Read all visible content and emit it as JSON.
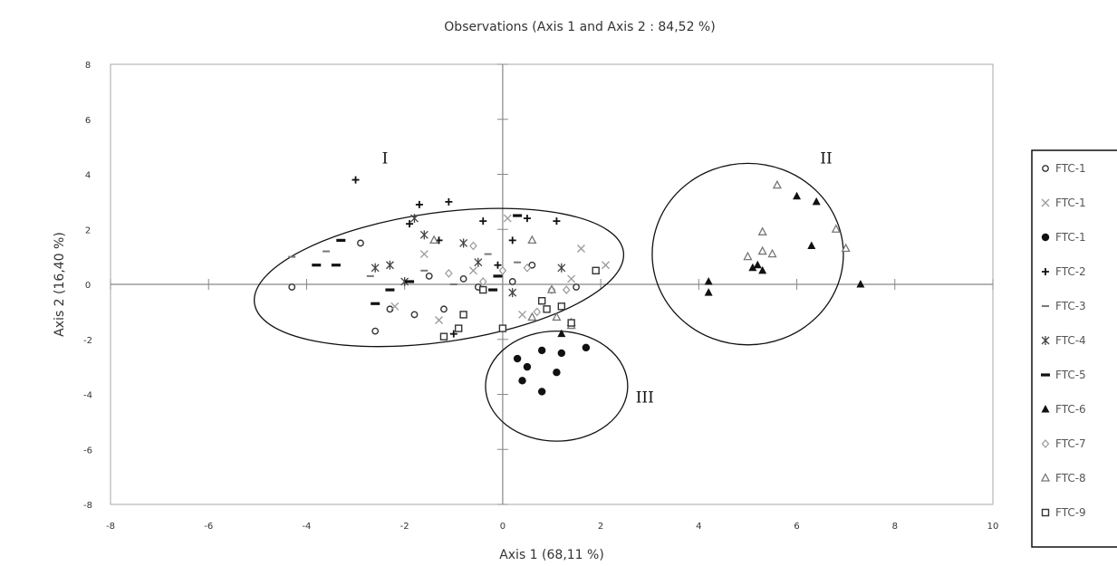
{
  "chart_data": {
    "type": "scatter",
    "title": "Observations (Axis 1 and Axis 2 : 84,52 %)",
    "xlabel": "Axis 1 (68,11 %)",
    "ylabel": "Axis 2 (16,40 %)",
    "xlim": [
      -8,
      10
    ],
    "ylim": [
      -8,
      8
    ],
    "x_ticks": [
      "-8",
      "-6",
      "-4",
      "-2",
      "0",
      "2",
      "4",
      "6",
      "8",
      "10"
    ],
    "y_ticks": [
      "8",
      "6",
      "4",
      "2",
      "0",
      "-2",
      "-4",
      "-6",
      "-8"
    ],
    "grid": false,
    "legend_position": "right",
    "cluster_labels": [
      {
        "label": "I",
        "x": -2.4,
        "y": 4.4
      },
      {
        "label": "II",
        "x": 6.6,
        "y": 4.4
      },
      {
        "label": "III",
        "x": 2.9,
        "y": -4.3
      }
    ],
    "ellipses": [
      {
        "cx": -1.3,
        "cy": 0.25,
        "rx": 3.8,
        "ry": 2.35,
        "rotate": -8
      },
      {
        "cx": 5.0,
        "cy": 1.1,
        "rx": 1.95,
        "ry": 3.3,
        "rotate": 0
      },
      {
        "cx": 1.1,
        "cy": -3.7,
        "rx": 1.45,
        "ry": 2.0,
        "rotate": 0
      }
    ],
    "series": [
      {
        "name": "FTC-1",
        "marker": "circle-open",
        "color": "#333333",
        "points": [
          [
            -4.3,
            -0.1
          ],
          [
            -2.9,
            1.5
          ],
          [
            -2.3,
            -0.9
          ],
          [
            -1.8,
            -1.1
          ],
          [
            -1.2,
            -0.9
          ],
          [
            -0.8,
            0.2
          ],
          [
            -0.5,
            -0.1
          ],
          [
            0.2,
            0.1
          ],
          [
            0.6,
            0.7
          ],
          [
            1.5,
            -0.1
          ],
          [
            -1.5,
            0.3
          ],
          [
            -2.6,
            -1.7
          ]
        ]
      },
      {
        "name": "FTC-1",
        "marker": "cross",
        "color": "#999999",
        "points": [
          [
            -2.2,
            -0.8
          ],
          [
            -1.6,
            1.1
          ],
          [
            -0.6,
            0.5
          ],
          [
            0.1,
            2.4
          ],
          [
            1.4,
            0.2
          ],
          [
            2.1,
            0.7
          ],
          [
            -1.3,
            -1.3
          ],
          [
            0.4,
            -1.1
          ],
          [
            1.6,
            1.3
          ]
        ]
      },
      {
        "name": "FTC-1",
        "marker": "dot",
        "color": "#111111",
        "points": [
          [
            0.3,
            -2.7
          ],
          [
            0.5,
            -3.0
          ],
          [
            0.8,
            -2.4
          ],
          [
            0.8,
            -3.9
          ],
          [
            1.1,
            -3.2
          ],
          [
            1.2,
            -2.5
          ],
          [
            1.7,
            -2.3
          ],
          [
            0.4,
            -3.5
          ]
        ]
      },
      {
        "name": "FTC-2",
        "marker": "plus",
        "color": "#111111",
        "points": [
          [
            -3.0,
            3.8
          ],
          [
            -1.9,
            2.2
          ],
          [
            -1.7,
            2.9
          ],
          [
            -1.1,
            3.0
          ],
          [
            -1.3,
            1.6
          ],
          [
            -0.4,
            2.3
          ],
          [
            0.2,
            1.6
          ],
          [
            -0.1,
            0.7
          ],
          [
            1.1,
            2.3
          ],
          [
            0.5,
            2.4
          ],
          [
            -1.0,
            -1.8
          ]
        ]
      },
      {
        "name": "FTC-3",
        "marker": "dash",
        "color": "#777777",
        "points": [
          [
            -4.3,
            1.0
          ],
          [
            -3.6,
            1.2
          ],
          [
            -2.7,
            0.3
          ],
          [
            -1.6,
            0.5
          ],
          [
            -1.0,
            0.0
          ],
          [
            0.3,
            0.8
          ],
          [
            -0.3,
            1.1
          ]
        ]
      },
      {
        "name": "FTC-4",
        "marker": "star",
        "color": "#444444",
        "points": [
          [
            -2.6,
            0.6
          ],
          [
            -2.3,
            0.7
          ],
          [
            -1.8,
            2.4
          ],
          [
            -1.6,
            1.8
          ],
          [
            -0.8,
            1.5
          ],
          [
            -0.5,
            0.8
          ],
          [
            1.2,
            0.6
          ],
          [
            -2.0,
            0.1
          ],
          [
            0.2,
            -0.3
          ]
        ]
      },
      {
        "name": "FTC-5",
        "marker": "bar",
        "color": "#111111",
        "points": [
          [
            -3.3,
            1.6
          ],
          [
            -3.8,
            0.7
          ],
          [
            -3.4,
            0.7
          ],
          [
            -2.6,
            -0.7
          ],
          [
            -2.3,
            -0.2
          ],
          [
            -1.9,
            0.1
          ],
          [
            -0.1,
            0.3
          ],
          [
            -0.2,
            -0.2
          ],
          [
            0.3,
            2.5
          ]
        ]
      },
      {
        "name": "FTC-6",
        "marker": "triangle-filled",
        "color": "#111111",
        "points": [
          [
            4.2,
            0.1
          ],
          [
            5.1,
            0.6
          ],
          [
            5.3,
            0.5
          ],
          [
            6.0,
            3.2
          ],
          [
            6.4,
            3.0
          ],
          [
            6.3,
            1.4
          ],
          [
            7.3,
            0.0
          ],
          [
            4.2,
            -0.3
          ],
          [
            5.2,
            0.7
          ],
          [
            1.2,
            -1.8
          ]
        ]
      },
      {
        "name": "FTC-7",
        "marker": "diamond-open",
        "color": "#999999",
        "points": [
          [
            -1.1,
            0.4
          ],
          [
            -0.6,
            1.4
          ],
          [
            0.0,
            0.5
          ],
          [
            0.5,
            0.6
          ],
          [
            1.0,
            -0.2
          ],
          [
            1.3,
            -0.2
          ],
          [
            -0.4,
            0.1
          ],
          [
            0.7,
            -1.0
          ]
        ]
      },
      {
        "name": "FTC-8",
        "marker": "triangle-open",
        "color": "#777777",
        "points": [
          [
            5.3,
            1.9
          ],
          [
            5.6,
            3.6
          ],
          [
            5.5,
            1.1
          ],
          [
            5.3,
            1.2
          ],
          [
            6.8,
            2.0
          ],
          [
            7.0,
            1.3
          ],
          [
            5.0,
            1.0
          ],
          [
            0.6,
            1.6
          ],
          [
            1.1,
            -1.2
          ],
          [
            1.4,
            -1.4
          ],
          [
            1.4,
            -1.5
          ],
          [
            1.0,
            -0.2
          ],
          [
            -1.4,
            1.6
          ],
          [
            0.6,
            -1.2
          ]
        ]
      },
      {
        "name": "FTC-9",
        "marker": "square-open",
        "color": "#333333",
        "points": [
          [
            -0.4,
            -0.2
          ],
          [
            -0.8,
            -1.1
          ],
          [
            -1.2,
            -1.9
          ],
          [
            0.0,
            -1.6
          ],
          [
            1.2,
            -0.8
          ],
          [
            1.4,
            -1.4
          ],
          [
            1.9,
            0.5
          ],
          [
            0.8,
            -0.6
          ],
          [
            -0.9,
            -1.6
          ],
          [
            0.9,
            -0.9
          ]
        ]
      }
    ]
  }
}
